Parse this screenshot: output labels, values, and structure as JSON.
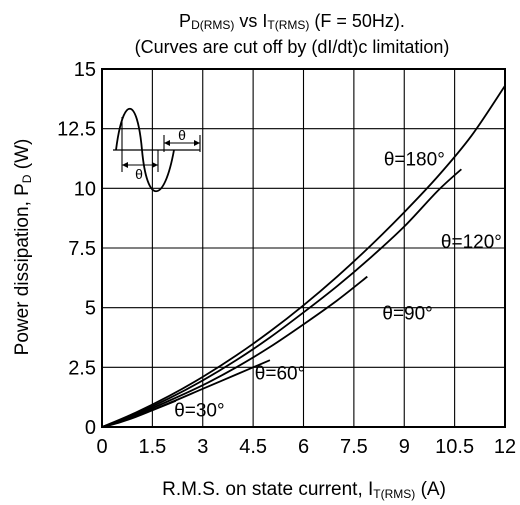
{
  "chart_data": {
    "type": "line",
    "title": {
      "main_prefix": "P",
      "main_sub": "D(RMS)",
      "main_mid": " vs I",
      "main_sub2": "T(RMS)",
      "main_suffix": " (F = 50Hz).",
      "subtitle": "(Curves are cut off by (dI/dt)c limitation)"
    },
    "ylabel": {
      "prefix": "Power dissipation, P",
      "sub": "D",
      "suffix": " (W)"
    },
    "xlabel": {
      "prefix": "R.M.S. on state current, I",
      "sub": "T(RMS)",
      "suffix": " (A)"
    },
    "xlim": [
      0,
      12
    ],
    "ylim": [
      0,
      15
    ],
    "xticks": [
      "0",
      "1.5",
      "3",
      "4.5",
      "6",
      "7.5",
      "9",
      "10.5",
      "12"
    ],
    "yticks": [
      "0",
      "2.5",
      "5",
      "7.5",
      "10",
      "12.5",
      "15"
    ],
    "grid": true,
    "series": [
      {
        "name": "θ=30°",
        "x": [
          0,
          0.5,
          1.0,
          1.5,
          2.2
        ],
        "y": [
          0,
          0.18,
          0.42,
          0.7,
          1.1
        ]
      },
      {
        "name": "θ=60°",
        "x": [
          0,
          1,
          2,
          3,
          4,
          5.0
        ],
        "y": [
          0,
          0.45,
          1.0,
          1.6,
          2.2,
          2.8
        ]
      },
      {
        "name": "θ=90°",
        "x": [
          0,
          1,
          2,
          3,
          4,
          5,
          6,
          7,
          7.9
        ],
        "y": [
          0,
          0.5,
          1.1,
          1.75,
          2.5,
          3.35,
          4.3,
          5.3,
          6.3
        ]
      },
      {
        "name": "θ=120°",
        "x": [
          0,
          1,
          2,
          3,
          4,
          5,
          6,
          7,
          8,
          9,
          10,
          10.7
        ],
        "y": [
          0,
          0.55,
          1.2,
          1.95,
          2.8,
          3.75,
          4.8,
          5.9,
          7.1,
          8.4,
          9.9,
          10.8
        ]
      },
      {
        "name": "θ=180°",
        "x": [
          0,
          1,
          2,
          3,
          4,
          5,
          6,
          7,
          8,
          9,
          10,
          11,
          12
        ],
        "y": [
          0,
          0.6,
          1.3,
          2.1,
          3.0,
          4.0,
          5.1,
          6.3,
          7.6,
          9.0,
          10.5,
          12.2,
          14.3
        ]
      }
    ],
    "series_labels_at": [
      {
        "name": "θ=30°",
        "x": 2.9,
        "y": 0.45
      },
      {
        "name": "θ=60°",
        "x": 5.3,
        "y": 2.0
      },
      {
        "name": "θ=90°",
        "x": 9.1,
        "y": 4.5
      },
      {
        "name": "θ=120°",
        "x": 11.0,
        "y": 7.5
      },
      {
        "name": "θ=180°",
        "x": 9.3,
        "y": 10.95
      }
    ],
    "inset": {
      "theta_label": "θ"
    }
  }
}
